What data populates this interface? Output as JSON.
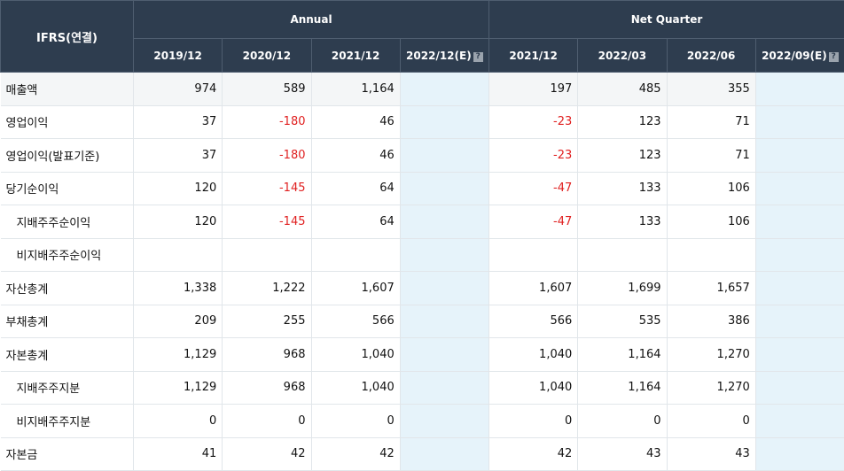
{
  "corner_label": "IFRS(연결)",
  "groups": {
    "annual": "Annual",
    "quarter": "Net Quarter"
  },
  "periods": [
    "2019/12",
    "2020/12",
    "2021/12",
    "2022/12(E)",
    "2021/12",
    "2022/03",
    "2022/06",
    "2022/09(E)"
  ],
  "info_icon": "question-mark-icon",
  "colors": {
    "header_bg": "#2e3d4f",
    "negative": "#e02020",
    "estimate_bg": "#e6f3fa"
  },
  "rows": [
    {
      "label": "매출액",
      "sub": false,
      "values": [
        "974",
        "589",
        "1,164",
        "",
        "197",
        "485",
        "355",
        ""
      ]
    },
    {
      "label": "영업이익",
      "sub": false,
      "values": [
        "37",
        "-180",
        "46",
        "",
        "-23",
        "123",
        "71",
        ""
      ]
    },
    {
      "label": "영업이익(발표기준)",
      "sub": false,
      "values": [
        "37",
        "-180",
        "46",
        "",
        "-23",
        "123",
        "71",
        ""
      ]
    },
    {
      "label": "당기순이익",
      "sub": false,
      "values": [
        "120",
        "-145",
        "64",
        "",
        "-47",
        "133",
        "106",
        ""
      ]
    },
    {
      "label": "지배주주순이익",
      "sub": true,
      "values": [
        "120",
        "-145",
        "64",
        "",
        "-47",
        "133",
        "106",
        ""
      ]
    },
    {
      "label": "비지배주주순이익",
      "sub": true,
      "values": [
        "",
        "",
        "",
        "",
        "",
        "",
        "",
        ""
      ]
    },
    {
      "label": "자산총계",
      "sub": false,
      "values": [
        "1,338",
        "1,222",
        "1,607",
        "",
        "1,607",
        "1,699",
        "1,657",
        ""
      ]
    },
    {
      "label": "부채총계",
      "sub": false,
      "values": [
        "209",
        "255",
        "566",
        "",
        "566",
        "535",
        "386",
        ""
      ]
    },
    {
      "label": "자본총계",
      "sub": false,
      "values": [
        "1,129",
        "968",
        "1,040",
        "",
        "1,040",
        "1,164",
        "1,270",
        ""
      ]
    },
    {
      "label": "지배주주지분",
      "sub": true,
      "values": [
        "1,129",
        "968",
        "1,040",
        "",
        "1,040",
        "1,164",
        "1,270",
        ""
      ]
    },
    {
      "label": "비지배주주지분",
      "sub": true,
      "values": [
        "0",
        "0",
        "0",
        "",
        "0",
        "0",
        "0",
        ""
      ]
    },
    {
      "label": "자본금",
      "sub": false,
      "values": [
        "41",
        "42",
        "42",
        "",
        "42",
        "43",
        "43",
        ""
      ]
    }
  ]
}
